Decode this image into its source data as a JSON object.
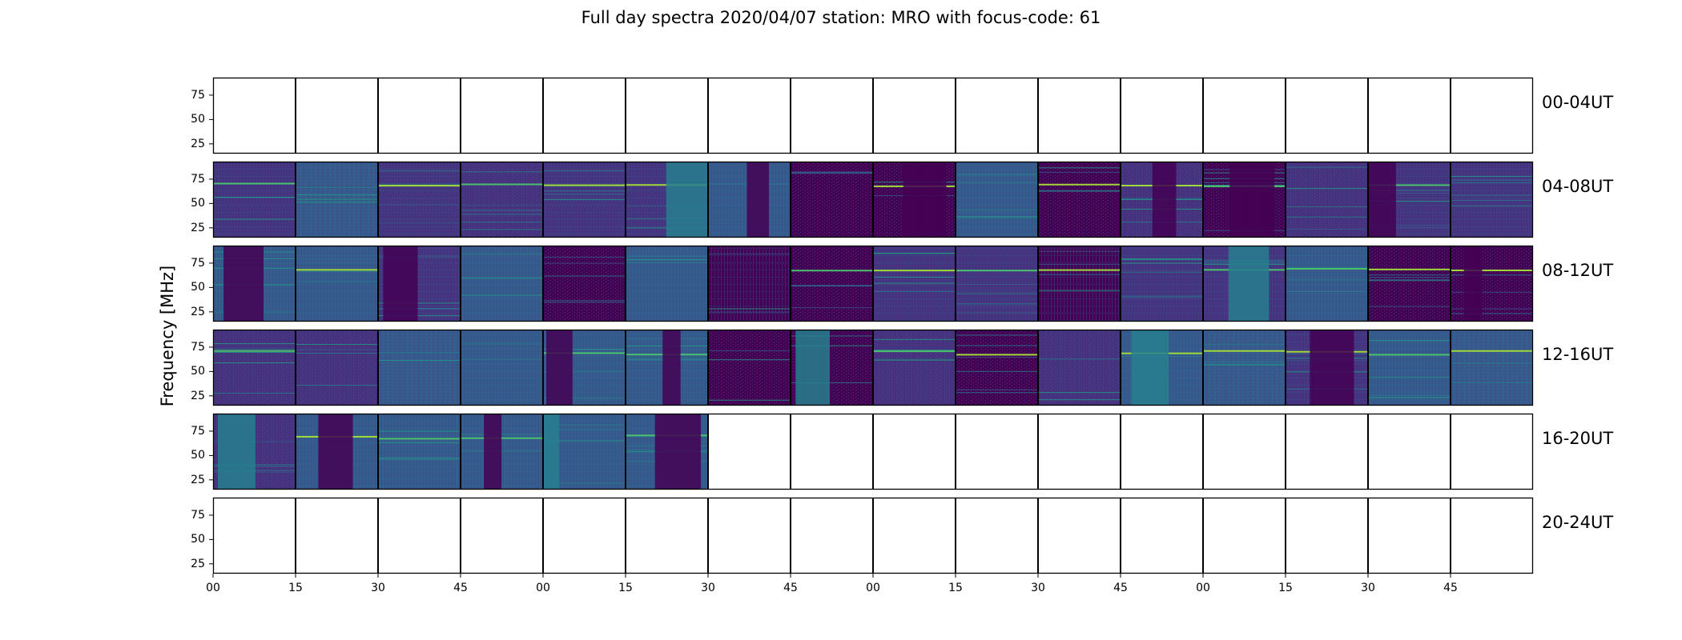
{
  "chart_data": {
    "type": "heatmap",
    "title": "Full day spectra 2020/04/07 station: MRO with focus-code: 61",
    "ylabel": "Frequency [MHz]",
    "ylim": [
      15,
      93
    ],
    "yticks": [
      "25",
      "50",
      "75"
    ],
    "ytick_values": [
      25,
      50,
      75
    ],
    "xticks": [
      "00",
      "15",
      "30",
      "45",
      "00",
      "15",
      "30",
      "45",
      "00",
      "15",
      "30",
      "45",
      "00",
      "15",
      "30",
      "45"
    ],
    "panels_per_row": 16,
    "panel_minutes": 15,
    "rows": [
      {
        "label": "00-04UT",
        "filled_panels": 0
      },
      {
        "label": "04-08UT",
        "filled_panels": 16
      },
      {
        "label": "08-12UT",
        "filled_panels": 16
      },
      {
        "label": "12-16UT",
        "filled_panels": 16
      },
      {
        "label": "16-20UT",
        "filled_panels": 6
      },
      {
        "label": "20-24UT",
        "filled_panels": 0
      }
    ],
    "colormap": [
      "#440154",
      "#46327e",
      "#365c8d",
      "#277f8e",
      "#1fa187",
      "#4ac16d",
      "#a0da39",
      "#fde725"
    ]
  }
}
